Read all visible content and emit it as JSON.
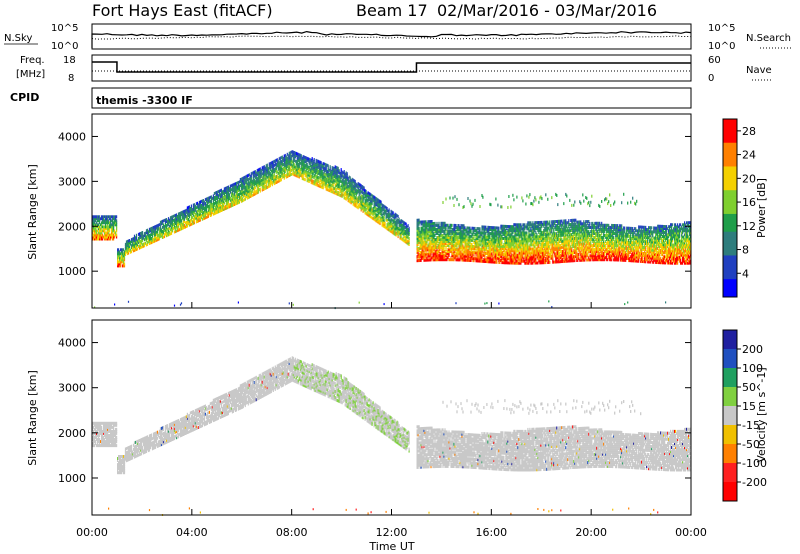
{
  "header": {
    "title": "Fort Hays East (fitACF)",
    "beam": "Beam 17",
    "dates": "02/Mar/2016 - 03/Mar/2016"
  },
  "noise_panel": {
    "left_label": "N.Sky",
    "right_label": "N.Search",
    "left_ticks": [
      "10^5",
      "10^0"
    ],
    "right_ticks": [
      "10^5",
      "10^0"
    ]
  },
  "freq_panel": {
    "left_label_1": "Freq.",
    "left_label_2": "[MHz]",
    "right_label": "Nave",
    "left_ticks": [
      "18",
      "8"
    ],
    "right_ticks": [
      "60",
      "0"
    ]
  },
  "cpid": {
    "label": "CPID",
    "value": "themis -3300 IF"
  },
  "colors": {
    "ground_scatter": "#bebebe",
    "background": "#ffffff"
  },
  "chart_data": [
    {
      "type": "heatmap",
      "panel": "power",
      "ylabel": "Slant Range [km]",
      "xlabel": "",
      "xlim": [
        "00:00",
        "24:00"
      ],
      "ylim": [
        180,
        4500
      ],
      "yticks": [
        "1000",
        "2000",
        "3000",
        "4000"
      ],
      "colorbar_label": "Power [dB]",
      "colorbar_ticks": [
        "4",
        "8",
        "12",
        "16",
        "20",
        "24",
        "28"
      ],
      "colorbar_range": [
        0,
        30
      ],
      "colorscale": [
        "#0000ff",
        "#2040c0",
        "#2e7d7d",
        "#1f9e4a",
        "#7fcf2f",
        "#f4d000",
        "#ff8000",
        "#ff0000"
      ],
      "bands": [
        {
          "t": [
            0,
            1.0
          ],
          "range": [
            1700,
            2300
          ],
          "level": 0.85
        },
        {
          "t": [
            1.0,
            1.3
          ],
          "range": [
            1150,
            1500
          ],
          "level": 0.8
        },
        {
          "t": [
            1.3,
            6.0
          ],
          "range": [
            1400,
            3000
          ],
          "level": 0.55
        },
        {
          "t": [
            6.0,
            10.0
          ],
          "range": [
            2700,
            3700
          ],
          "level": 0.45
        },
        {
          "t": [
            10.0,
            13.0
          ],
          "range": [
            1400,
            2800
          ],
          "level": 0.5
        },
        {
          "t": [
            13.0,
            24.0
          ],
          "range": [
            1250,
            2100
          ],
          "level": 0.8
        },
        {
          "t": [
            14.0,
            22.0
          ],
          "range": [
            2300,
            2800
          ],
          "level": 0.4
        }
      ]
    },
    {
      "type": "heatmap",
      "panel": "velocity",
      "ylabel": "Slant Range [km]",
      "xlabel": "Time UT",
      "xlim": [
        "00:00",
        "24:00"
      ],
      "ylim": [
        180,
        4500
      ],
      "yticks": [
        "1000",
        "2000",
        "3000",
        "4000"
      ],
      "xticks": [
        "00:00",
        "04:00",
        "08:00",
        "12:00",
        "16:00",
        "20:00",
        "00:00"
      ],
      "colorbar_label": "Velocity [m s^-1]",
      "colorbar_ticks": [
        "200",
        "100",
        "50",
        "15",
        "-15",
        "-50",
        "-100",
        "-200"
      ],
      "colorscale": [
        "#2020a0",
        "#2050c0",
        "#20a060",
        "#80d040",
        "#c8c8c8",
        "#f0c000",
        "#ff8000",
        "#ff2020",
        "#ff0000"
      ],
      "note": "Most echoes are ground scatter (grey); green low-velocity patches near 08:00-12:30."
    }
  ]
}
